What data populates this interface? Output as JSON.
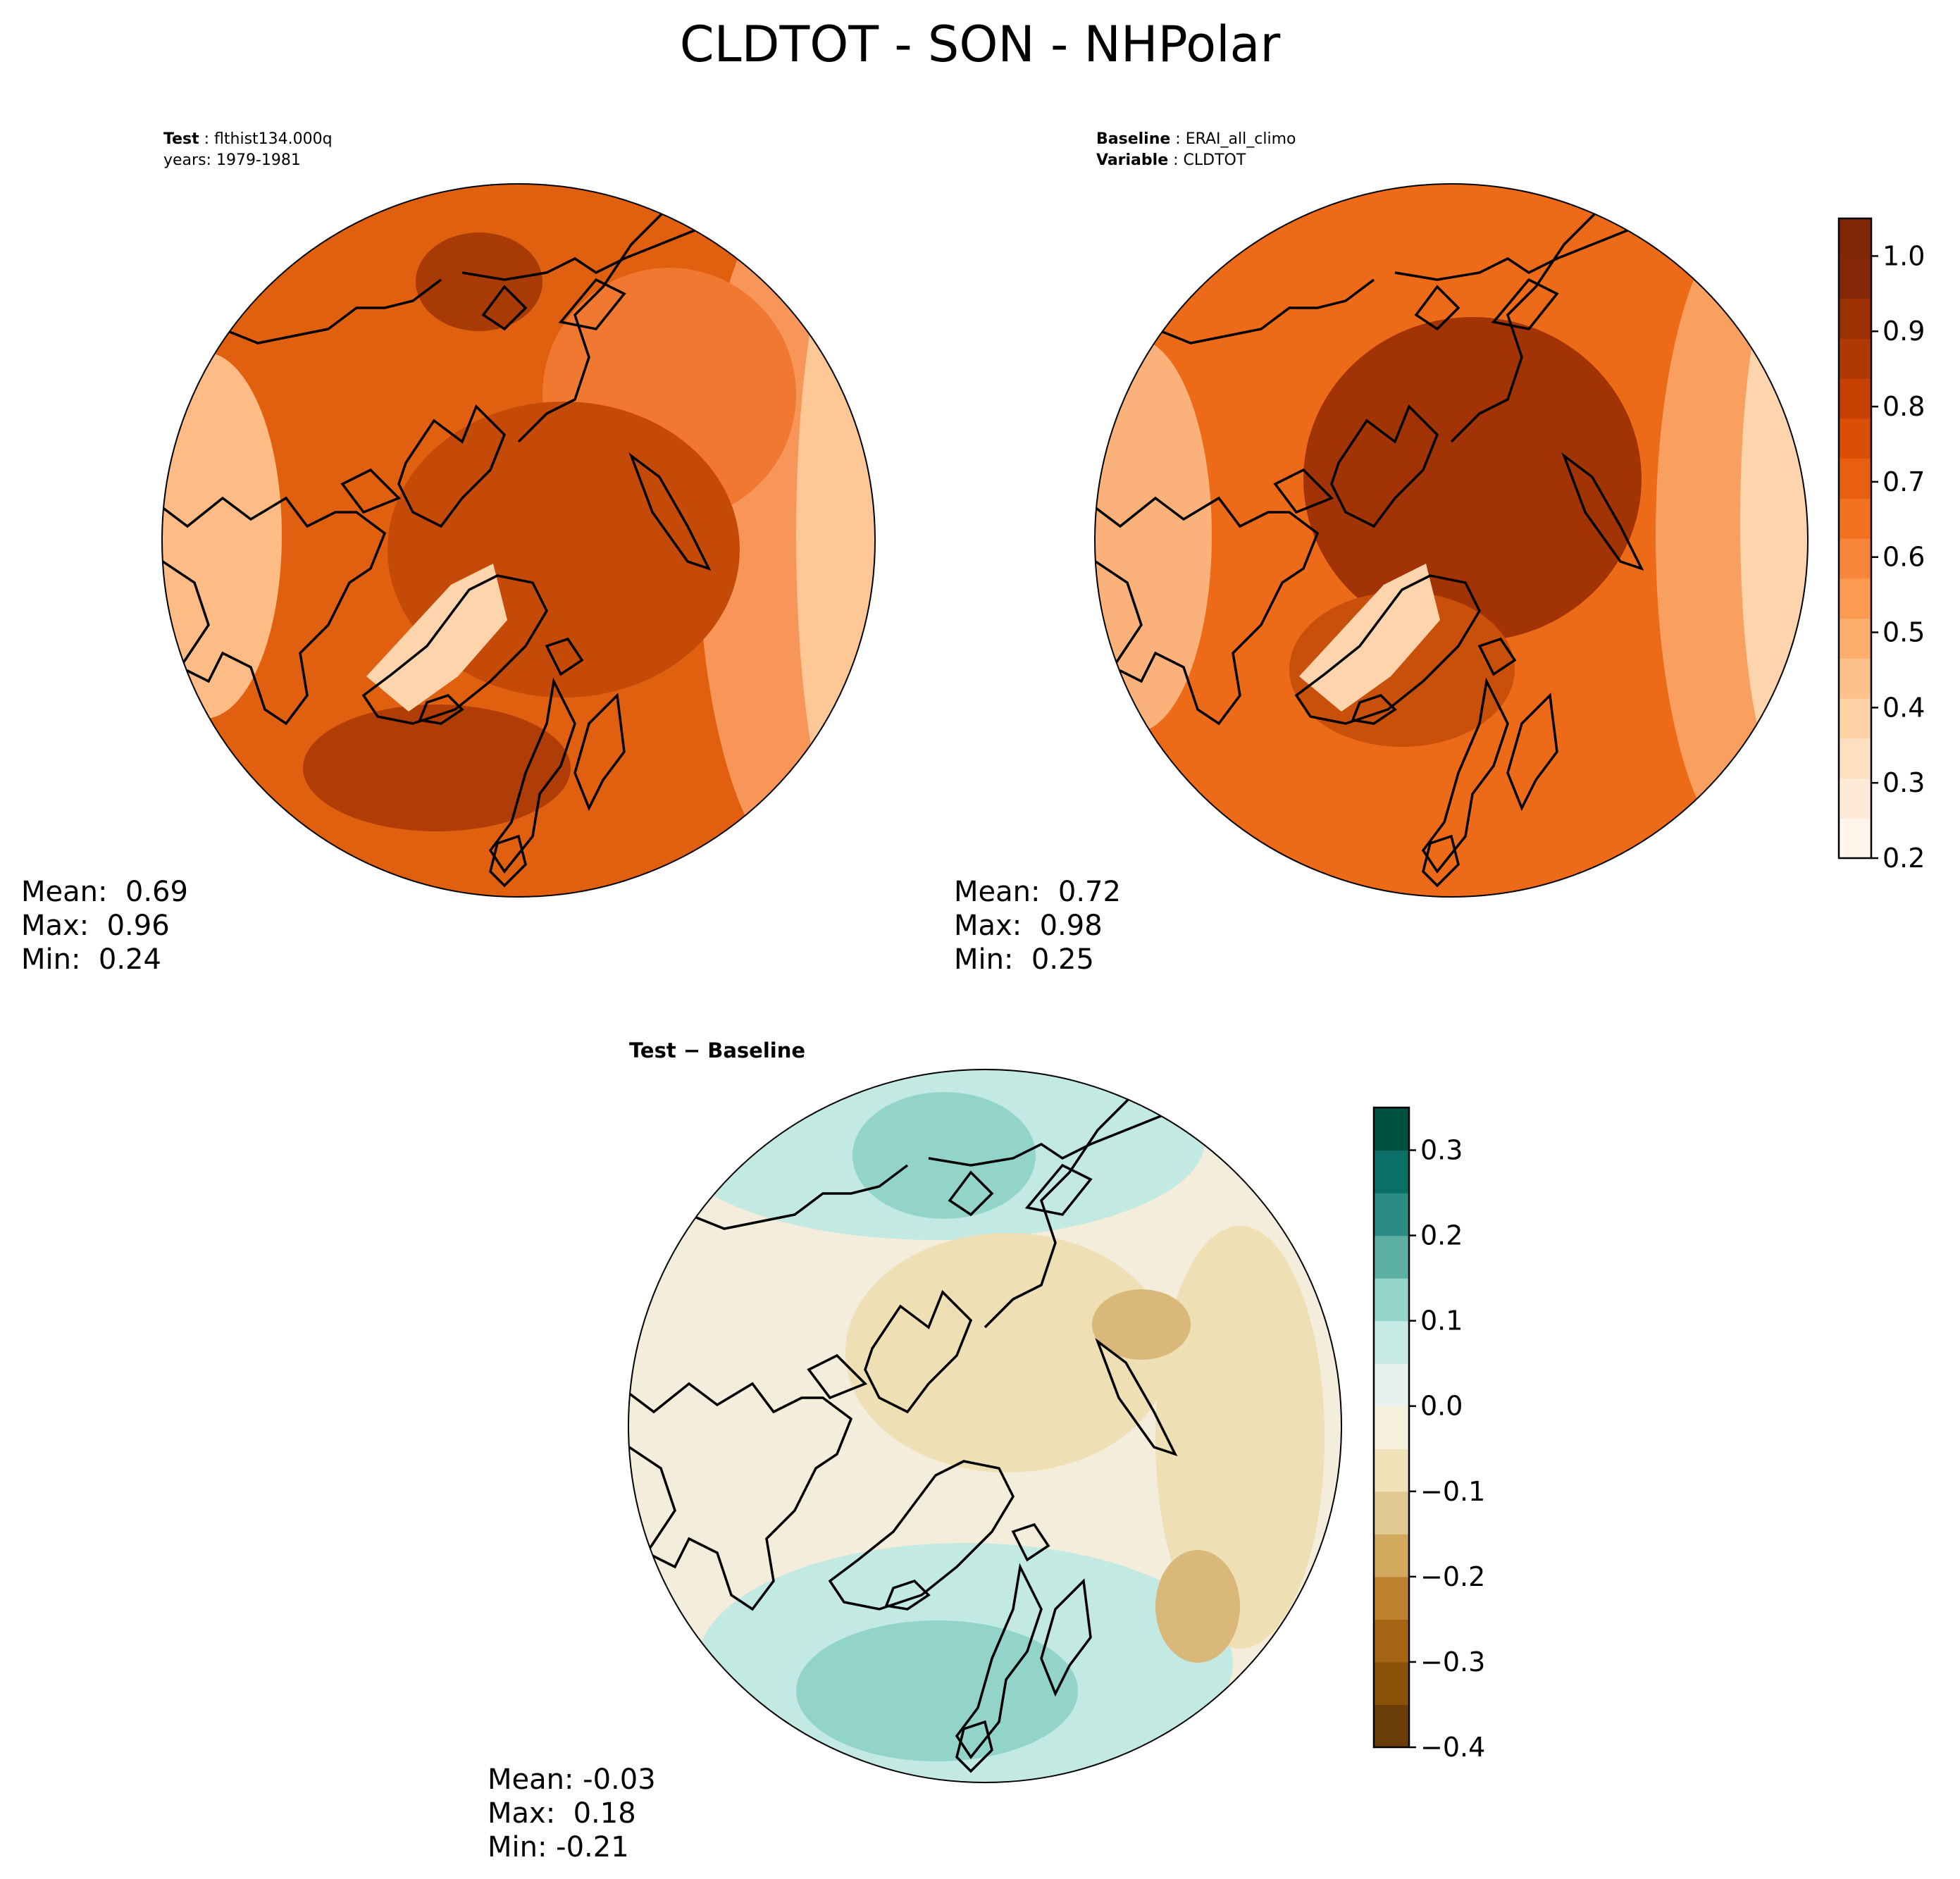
{
  "title": "CLDTOT - SON - NHPolar",
  "panels": {
    "test": {
      "header_key_1": "Test",
      "header_val_1": "flthist134.000q",
      "header_line_2": "years: 1979-1981",
      "stats": {
        "mean": "Mean:  0.69",
        "max": "Max:  0.96",
        "min": "Min:  0.24"
      }
    },
    "baseline": {
      "header_key_1": "Baseline",
      "header_val_1": "ERAI_all_climo",
      "header_key_2": "Variable",
      "header_val_2": "CLDTOT",
      "stats": {
        "mean": "Mean:  0.72",
        "max": "Max:  0.98",
        "min": "Min:  0.25"
      }
    },
    "diff": {
      "title_a": "Test",
      "title_b": "Baseline",
      "stats": {
        "mean": "Mean: -0.03",
        "max": "Max:  0.18",
        "min": "Min: -0.21"
      }
    }
  },
  "colorbars": {
    "main": {
      "colormap": "Oranges",
      "ticks": [
        "0.2",
        "0.3",
        "0.4",
        "0.5",
        "0.6",
        "0.7",
        "0.8",
        "0.9",
        "1.0"
      ],
      "colors": [
        "#fff5eb",
        "#feead6",
        "#fee0c1",
        "#fdd2a5",
        "#fdc28c",
        "#fdae6c",
        "#fd9a52",
        "#f8863a",
        "#f2711f",
        "#e75f0f",
        "#db4e05",
        "#c64102",
        "#b03802",
        "#9b3103",
        "#86290a",
        "#7f2704"
      ]
    },
    "diff": {
      "colormap": "BrBG",
      "ticks": [
        "−0.4",
        "−0.3",
        "−0.2",
        "−0.1",
        "0.0",
        "0.1",
        "0.2",
        "0.3"
      ],
      "colors": [
        "#6a3c07",
        "#8a5209",
        "#a66515",
        "#bd812e",
        "#d2a75e",
        "#e2c991",
        "#f0e2b8",
        "#f5efdc",
        "#e7f2ef",
        "#c6eae4",
        "#92d4ca",
        "#5cb0a4",
        "#2a8c84",
        "#0a6f66",
        "#00513f"
      ]
    }
  },
  "map_colors": {
    "test": {
      "background": "#e06010",
      "pole": "#c34a08",
      "dark": "#a83a05",
      "light": "#f9a060",
      "lighter": "#fdd4ac"
    },
    "baseline": {
      "background": "#ec6a18",
      "pole": "#a23305",
      "dark": "#c84a08",
      "light": "#f9a060",
      "lighter": "#fdd4ac"
    },
    "diff": {
      "background": "#f4eddc",
      "teal": "#c3e9e3",
      "teal_dark": "#92d4ca",
      "tan": "#eedfb5",
      "tan_dark": "#d9b87a"
    }
  }
}
